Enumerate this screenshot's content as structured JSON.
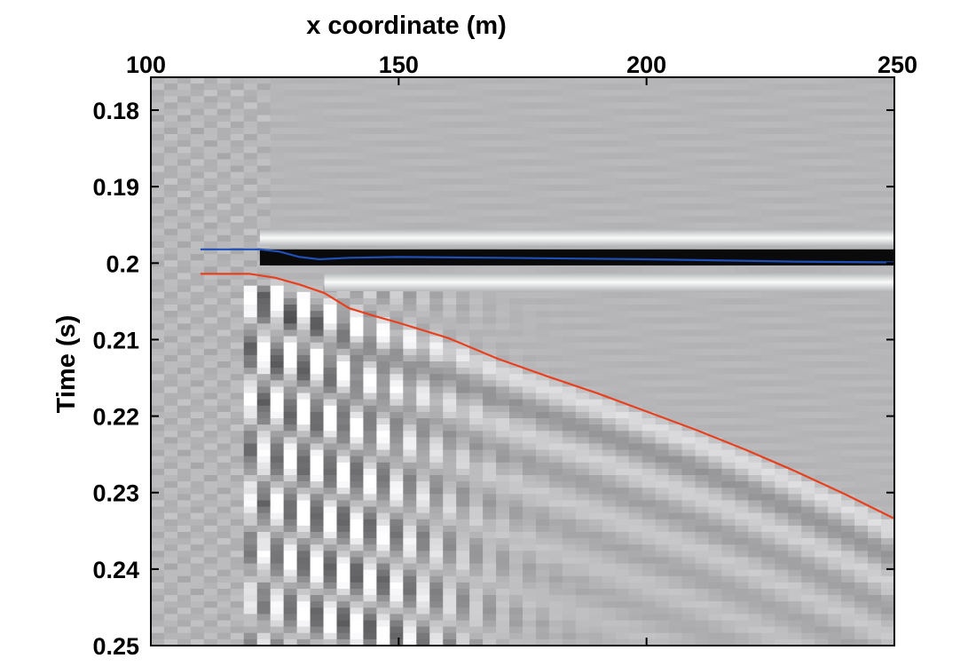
{
  "chart_data": {
    "type": "heatmap",
    "xlabel": "x coordinate (m)",
    "ylabel": "Time (s)",
    "xlim": [
      100,
      250
    ],
    "ylim": [
      0.25,
      0.1757
    ],
    "x_ticks": [
      "100",
      "150",
      "200",
      "250"
    ],
    "y_ticks": [
      "0.18",
      "0.19",
      "0.2",
      "0.21",
      "0.22",
      "0.23",
      "0.24",
      "0.25"
    ],
    "x_tick_values": [
      100,
      150,
      200,
      250
    ],
    "y_tick_values": [
      0.18,
      0.19,
      0.2,
      0.21,
      0.22,
      0.23,
      0.24,
      0.25
    ],
    "colormap": "grayscale",
    "background_color": "#b4b7ba",
    "grid": false,
    "series": [
      {
        "color": "#1f4fb4",
        "x": [
          110,
          122,
          126,
          130,
          134,
          140,
          150,
          170,
          200,
          230,
          250
        ],
        "y": [
          0.1982,
          0.1982,
          0.1985,
          0.1992,
          0.1995,
          0.1993,
          0.1992,
          0.1993,
          0.1995,
          0.1998,
          0.1999
        ]
      },
      {
        "color": "#e8401e",
        "x": [
          110,
          115,
          120,
          125,
          130,
          135,
          140,
          145,
          150,
          160,
          170,
          180,
          190,
          200,
          210,
          220,
          230,
          240,
          250
        ],
        "y": [
          0.2014,
          0.2014,
          0.2014,
          0.2019,
          0.2028,
          0.2039,
          0.2059,
          0.2069,
          0.2078,
          0.2098,
          0.2125,
          0.2148,
          0.217,
          0.2194,
          0.2218,
          0.2244,
          0.2272,
          0.2302,
          0.2334
        ]
      }
    ]
  }
}
